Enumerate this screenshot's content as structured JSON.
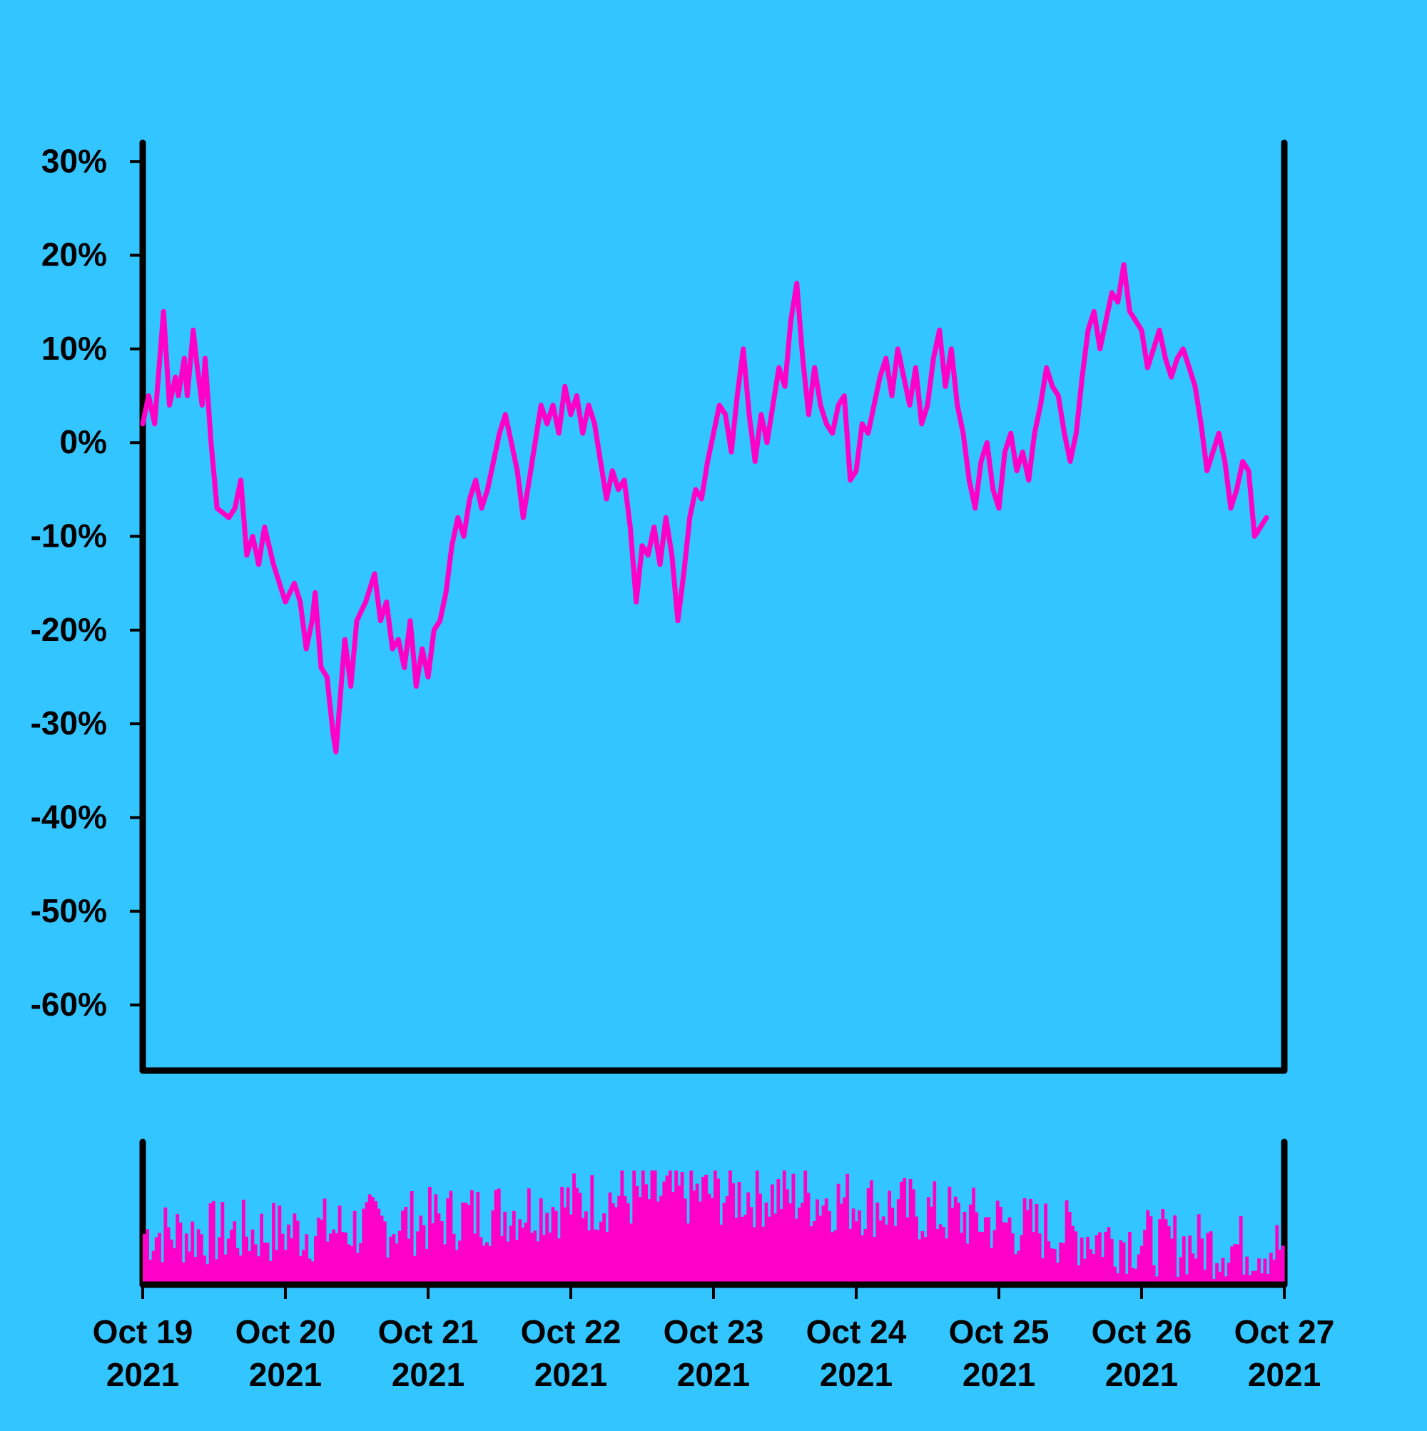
{
  "chart_data": [
    {
      "type": "line",
      "title": "",
      "xlabel": "",
      "ylabel": "",
      "ylim": [
        -67,
        32
      ],
      "yticks": [
        30,
        20,
        10,
        0,
        -10,
        -20,
        -30,
        -40,
        -50,
        -60
      ],
      "ytick_labels": [
        "30%",
        "20%",
        "10%",
        "0%",
        "-10%",
        "-20%",
        "-30%",
        "-40%",
        "-50%",
        "-60%"
      ],
      "x_range": [
        "2021-10-19T00:00",
        "2021-10-27T00:00"
      ],
      "x_key_points": [
        [
          "2021-10-19T00:00",
          2
        ],
        [
          "2021-10-19T01:00",
          5
        ],
        [
          "2021-10-19T02:00",
          2
        ],
        [
          "2021-10-19T03:30",
          14
        ],
        [
          "2021-10-19T04:30",
          4
        ],
        [
          "2021-10-19T05:30",
          7
        ],
        [
          "2021-10-19T06:00",
          5
        ],
        [
          "2021-10-19T07:00",
          9
        ],
        [
          "2021-10-19T07:30",
          5
        ],
        [
          "2021-10-19T08:30",
          12
        ],
        [
          "2021-10-19T09:00",
          9
        ],
        [
          "2021-10-19T10:00",
          4
        ],
        [
          "2021-10-19T10:30",
          9
        ],
        [
          "2021-10-19T11:30",
          0
        ],
        [
          "2021-10-19T12:30",
          -7
        ],
        [
          "2021-10-19T14:30",
          -8
        ],
        [
          "2021-10-19T15:30",
          -7
        ],
        [
          "2021-10-19T16:30",
          -4
        ],
        [
          "2021-10-19T17:30",
          -12
        ],
        [
          "2021-10-19T18:30",
          -10
        ],
        [
          "2021-10-19T19:30",
          -13
        ],
        [
          "2021-10-19T20:30",
          -9
        ],
        [
          "2021-10-19T22:00",
          -13
        ],
        [
          "2021-10-20T00:00",
          -17
        ],
        [
          "2021-10-20T01:30",
          -15
        ],
        [
          "2021-10-20T02:30",
          -17
        ],
        [
          "2021-10-20T03:30",
          -22
        ],
        [
          "2021-10-20T04:30",
          -19
        ],
        [
          "2021-10-20T05:00",
          -16
        ],
        [
          "2021-10-20T06:00",
          -24
        ],
        [
          "2021-10-20T07:00",
          -25
        ],
        [
          "2021-10-20T08:00",
          -31
        ],
        [
          "2021-10-20T08:30",
          -33
        ],
        [
          "2021-10-20T10:00",
          -21
        ],
        [
          "2021-10-20T11:00",
          -26
        ],
        [
          "2021-10-20T12:00",
          -19
        ],
        [
          "2021-10-20T13:30",
          -17
        ],
        [
          "2021-10-20T15:00",
          -14
        ],
        [
          "2021-10-20T16:00",
          -19
        ],
        [
          "2021-10-20T17:00",
          -17
        ],
        [
          "2021-10-20T18:00",
          -22
        ],
        [
          "2021-10-20T19:00",
          -21
        ],
        [
          "2021-10-20T20:00",
          -24
        ],
        [
          "2021-10-20T21:00",
          -19
        ],
        [
          "2021-10-20T22:00",
          -26
        ],
        [
          "2021-10-20T23:00",
          -22
        ],
        [
          "2021-10-21T00:00",
          -25
        ],
        [
          "2021-10-21T01:00",
          -20
        ],
        [
          "2021-10-21T02:00",
          -19
        ],
        [
          "2021-10-21T03:00",
          -16
        ],
        [
          "2021-10-21T04:00",
          -11
        ],
        [
          "2021-10-21T05:00",
          -8
        ],
        [
          "2021-10-21T06:00",
          -10
        ],
        [
          "2021-10-21T07:00",
          -6
        ],
        [
          "2021-10-21T08:00",
          -4
        ],
        [
          "2021-10-21T09:00",
          -7
        ],
        [
          "2021-10-21T10:00",
          -5
        ],
        [
          "2021-10-21T11:00",
          -2
        ],
        [
          "2021-10-21T12:00",
          1
        ],
        [
          "2021-10-21T13:00",
          3
        ],
        [
          "2021-10-21T14:00",
          0
        ],
        [
          "2021-10-21T15:00",
          -3
        ],
        [
          "2021-10-21T16:00",
          -8
        ],
        [
          "2021-10-21T17:00",
          -4
        ],
        [
          "2021-10-21T18:00",
          0
        ],
        [
          "2021-10-21T19:00",
          4
        ],
        [
          "2021-10-21T20:00",
          2
        ],
        [
          "2021-10-21T21:00",
          4
        ],
        [
          "2021-10-21T22:00",
          1
        ],
        [
          "2021-10-21T23:00",
          6
        ],
        [
          "2021-10-22T00:00",
          3
        ],
        [
          "2021-10-22T01:00",
          5
        ],
        [
          "2021-10-22T02:00",
          1
        ],
        [
          "2021-10-22T03:00",
          4
        ],
        [
          "2021-10-22T04:00",
          2
        ],
        [
          "2021-10-22T05:00",
          -2
        ],
        [
          "2021-10-22T06:00",
          -6
        ],
        [
          "2021-10-22T07:00",
          -3
        ],
        [
          "2021-10-22T08:00",
          -5
        ],
        [
          "2021-10-22T09:00",
          -4
        ],
        [
          "2021-10-22T10:00",
          -9
        ],
        [
          "2021-10-22T11:00",
          -17
        ],
        [
          "2021-10-22T12:00",
          -11
        ],
        [
          "2021-10-22T13:00",
          -12
        ],
        [
          "2021-10-22T14:00",
          -9
        ],
        [
          "2021-10-22T15:00",
          -13
        ],
        [
          "2021-10-22T16:00",
          -8
        ],
        [
          "2021-10-22T17:00",
          -12
        ],
        [
          "2021-10-22T18:00",
          -19
        ],
        [
          "2021-10-22T19:00",
          -14
        ],
        [
          "2021-10-22T20:00",
          -8
        ],
        [
          "2021-10-22T21:00",
          -5
        ],
        [
          "2021-10-22T22:00",
          -6
        ],
        [
          "2021-10-22T23:00",
          -2
        ],
        [
          "2021-10-23T00:00",
          1
        ],
        [
          "2021-10-23T01:00",
          4
        ],
        [
          "2021-10-23T02:00",
          3
        ],
        [
          "2021-10-23T03:00",
          -1
        ],
        [
          "2021-10-23T04:00",
          5
        ],
        [
          "2021-10-23T05:00",
          10
        ],
        [
          "2021-10-23T06:00",
          3
        ],
        [
          "2021-10-23T07:00",
          -2
        ],
        [
          "2021-10-23T08:00",
          3
        ],
        [
          "2021-10-23T09:00",
          0
        ],
        [
          "2021-10-23T10:00",
          4
        ],
        [
          "2021-10-23T11:00",
          8
        ],
        [
          "2021-10-23T12:00",
          6
        ],
        [
          "2021-10-23T13:00",
          13
        ],
        [
          "2021-10-23T14:00",
          17
        ],
        [
          "2021-10-23T15:00",
          9
        ],
        [
          "2021-10-23T16:00",
          3
        ],
        [
          "2021-10-23T17:00",
          8
        ],
        [
          "2021-10-23T18:00",
          4
        ],
        [
          "2021-10-23T19:00",
          2
        ],
        [
          "2021-10-23T20:00",
          1
        ],
        [
          "2021-10-23T21:00",
          4
        ],
        [
          "2021-10-23T22:00",
          5
        ],
        [
          "2021-10-23T23:00",
          -4
        ],
        [
          "2021-10-24T00:00",
          -3
        ],
        [
          "2021-10-24T01:00",
          2
        ],
        [
          "2021-10-24T02:00",
          1
        ],
        [
          "2021-10-24T03:00",
          4
        ],
        [
          "2021-10-24T04:00",
          7
        ],
        [
          "2021-10-24T05:00",
          9
        ],
        [
          "2021-10-24T06:00",
          5
        ],
        [
          "2021-10-24T07:00",
          10
        ],
        [
          "2021-10-24T08:00",
          7
        ],
        [
          "2021-10-24T09:00",
          4
        ],
        [
          "2021-10-24T10:00",
          8
        ],
        [
          "2021-10-24T11:00",
          2
        ],
        [
          "2021-10-24T12:00",
          4
        ],
        [
          "2021-10-24T13:00",
          9
        ],
        [
          "2021-10-24T14:00",
          12
        ],
        [
          "2021-10-24T15:00",
          6
        ],
        [
          "2021-10-24T16:00",
          10
        ],
        [
          "2021-10-24T17:00",
          4
        ],
        [
          "2021-10-24T18:00",
          1
        ],
        [
          "2021-10-24T19:00",
          -4
        ],
        [
          "2021-10-24T20:00",
          -7
        ],
        [
          "2021-10-24T21:00",
          -2
        ],
        [
          "2021-10-24T22:00",
          0
        ],
        [
          "2021-10-24T23:00",
          -5
        ],
        [
          "2021-10-25T00:00",
          -7
        ],
        [
          "2021-10-25T01:00",
          -1
        ],
        [
          "2021-10-25T02:00",
          1
        ],
        [
          "2021-10-25T03:00",
          -3
        ],
        [
          "2021-10-25T04:00",
          -1
        ],
        [
          "2021-10-25T05:00",
          -4
        ],
        [
          "2021-10-25T06:00",
          1
        ],
        [
          "2021-10-25T07:00",
          4
        ],
        [
          "2021-10-25T08:00",
          8
        ],
        [
          "2021-10-25T09:00",
          6
        ],
        [
          "2021-10-25T10:00",
          5
        ],
        [
          "2021-10-25T11:00",
          1
        ],
        [
          "2021-10-25T12:00",
          -2
        ],
        [
          "2021-10-25T13:00",
          1
        ],
        [
          "2021-10-25T14:00",
          7
        ],
        [
          "2021-10-25T15:00",
          12
        ],
        [
          "2021-10-25T16:00",
          14
        ],
        [
          "2021-10-25T17:00",
          10
        ],
        [
          "2021-10-25T18:00",
          13
        ],
        [
          "2021-10-25T19:00",
          16
        ],
        [
          "2021-10-25T20:00",
          15
        ],
        [
          "2021-10-25T21:00",
          19
        ],
        [
          "2021-10-25T22:00",
          14
        ],
        [
          "2021-10-25T23:00",
          13
        ],
        [
          "2021-10-26T00:00",
          12
        ],
        [
          "2021-10-26T01:00",
          8
        ],
        [
          "2021-10-26T02:00",
          10
        ],
        [
          "2021-10-26T03:00",
          12
        ],
        [
          "2021-10-26T04:00",
          9
        ],
        [
          "2021-10-26T05:00",
          7
        ],
        [
          "2021-10-26T06:00",
          9
        ],
        [
          "2021-10-26T07:00",
          10
        ],
        [
          "2021-10-26T08:00",
          8
        ],
        [
          "2021-10-26T09:00",
          6
        ],
        [
          "2021-10-26T10:00",
          2
        ],
        [
          "2021-10-26T11:00",
          -3
        ],
        [
          "2021-10-26T12:00",
          -1
        ],
        [
          "2021-10-26T13:00",
          1
        ],
        [
          "2021-10-26T14:00",
          -2
        ],
        [
          "2021-10-26T15:00",
          -7
        ],
        [
          "2021-10-26T16:00",
          -5
        ],
        [
          "2021-10-26T17:00",
          -2
        ],
        [
          "2021-10-26T18:00",
          -3
        ],
        [
          "2021-10-26T19:00",
          -10
        ],
        [
          "2021-10-26T20:00",
          -9
        ],
        [
          "2021-10-26T21:00",
          -8
        ]
      ],
      "series": [
        {
          "color": "#FF00C8"
        }
      ]
    },
    {
      "type": "bar",
      "title": "",
      "xlabel": "",
      "ylabel": "",
      "values_note": "volume bars, no axis values shown",
      "series": [
        {
          "color": "#FF00C8"
        }
      ]
    }
  ],
  "x_tick_labels": [
    {
      "line1": "Oct 19",
      "line2": "2021"
    },
    {
      "line1": "Oct 20",
      "line2": "2021"
    },
    {
      "line1": "Oct 21",
      "line2": "2021"
    },
    {
      "line1": "Oct 22",
      "line2": "2021"
    },
    {
      "line1": "Oct 23",
      "line2": "2021"
    },
    {
      "line1": "Oct 24",
      "line2": "2021"
    },
    {
      "line1": "Oct 25",
      "line2": "2021"
    },
    {
      "line1": "Oct 26",
      "line2": "2021"
    },
    {
      "line1": "Oct 27",
      "line2": "2021"
    }
  ],
  "colors": {
    "background": "#33C5FF",
    "accent": "#FF00C8",
    "axis": "#000000"
  }
}
